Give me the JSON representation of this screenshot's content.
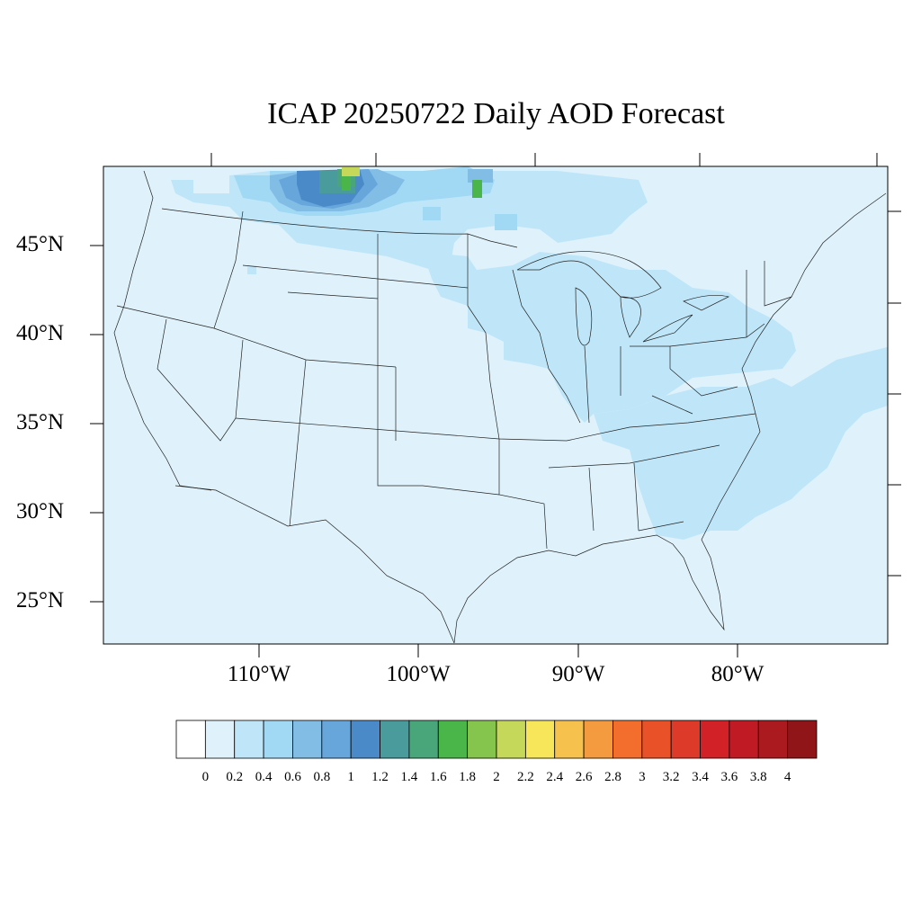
{
  "title": "ICAP 20250722 Daily AOD Forecast",
  "lat_labels": [
    "45°N",
    "40°N",
    "35°N",
    "30°N",
    "25°N"
  ],
  "lon_labels": [
    "110°W",
    "100°W",
    "90°W",
    "80°W"
  ],
  "colorbar": {
    "labels": [
      "0",
      "0.2",
      "0.4",
      "0.6",
      "0.8",
      "1",
      "1.2",
      "1.4",
      "1.6",
      "1.8",
      "2",
      "2.2",
      "2.4",
      "2.6",
      "2.8",
      "3",
      "3.2",
      "3.4",
      "3.6",
      "3.8",
      "4"
    ],
    "colors": [
      "#ffffff",
      "#dff2fb",
      "#bfe6f8",
      "#a1d8f3",
      "#82bde6",
      "#66a6db",
      "#4a8ac8",
      "#4a9b9c",
      "#49a67a",
      "#4ab548",
      "#86c54d",
      "#c5d85a",
      "#f7e65a",
      "#f7c14d",
      "#f59b3f",
      "#f36d2c",
      "#e95129",
      "#dd3a29",
      "#d32128",
      "#c01b24",
      "#ab1a1f",
      "#8f1519"
    ]
  },
  "map": {
    "background_color": "#dff2fb",
    "extent": {
      "lon_min": -119,
      "lon_max": -70,
      "lat_min": 22.5,
      "lat_max": 49
    },
    "plume_colors": {
      "light": "#bfe6f8",
      "medium": "#a1d8f3",
      "mid": "#82bde6",
      "dark": "#66a6db",
      "darker": "#4a8ac8",
      "teal": "#4a9b9c",
      "green": "#49a67a",
      "bright_green": "#4ab548",
      "yellow_green": "#c5d85a"
    }
  }
}
